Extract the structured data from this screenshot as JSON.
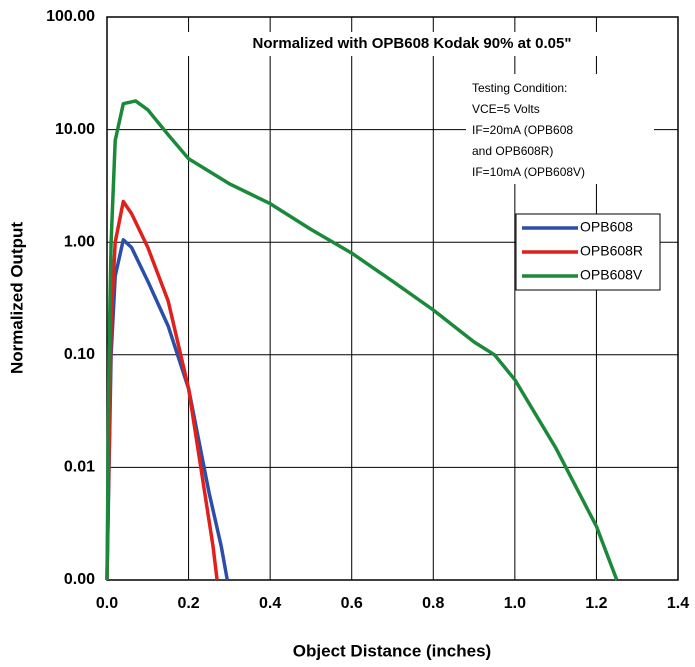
{
  "chart_data": {
    "type": "line",
    "title": "Normalized with OPB608 Kodak 90% at 0.05\"",
    "x_label": "Object Distance (inches)",
    "y_label": "Normalized Output",
    "y_scale": "log",
    "grid": true,
    "legend_position": "right",
    "annotation": [
      "Testing Condition:",
      "VCE=5 Volts",
      "IF=20mA (OPB608",
      "and OPB608R)",
      "IF=10mA (OPB608V)"
    ],
    "xlim": [
      0,
      1.4
    ],
    "xticks": [
      {
        "value": 0,
        "label": "0.0"
      },
      0.2,
      0.4,
      0.6,
      0.8,
      {
        "value": 1,
        "label": "1.0"
      },
      1.2,
      1.4
    ],
    "ylim": [
      0.001,
      100
    ],
    "yticks": [
      {
        "value": 0.001,
        "label": "0.00"
      },
      {
        "value": 0.01,
        "label": "0.01"
      },
      {
        "value": 0.1,
        "label": "0.10"
      },
      {
        "value": 1,
        "label": "1.00"
      },
      {
        "value": 10,
        "label": "10.00"
      },
      {
        "value": 100,
        "label": "100.00"
      }
    ],
    "series": [
      {
        "name": "OPB608",
        "color": "#2b4fa8",
        "x": [
          0.0,
          0.01,
          0.02,
          0.04,
          0.06,
          0.1,
          0.15,
          0.2,
          0.25,
          0.28,
          0.295
        ],
        "values": [
          0.001,
          0.1,
          0.5,
          1.05,
          0.9,
          0.45,
          0.18,
          0.05,
          0.006,
          0.002,
          0.001
        ]
      },
      {
        "name": "OPB608R",
        "color": "#e0201b",
        "x": [
          0.0,
          0.01,
          0.02,
          0.04,
          0.06,
          0.1,
          0.15,
          0.2,
          0.23,
          0.26,
          0.27
        ],
        "values": [
          0.001,
          0.2,
          1.0,
          2.3,
          1.8,
          0.9,
          0.3,
          0.05,
          0.01,
          0.002,
          0.001
        ]
      },
      {
        "name": "OPB608V",
        "color": "#1a8a3a",
        "x": [
          0.0,
          0.005,
          0.01,
          0.02,
          0.04,
          0.07,
          0.1,
          0.15,
          0.2,
          0.3,
          0.4,
          0.5,
          0.6,
          0.7,
          0.8,
          0.9,
          0.95,
          1.0,
          1.1,
          1.2,
          1.25
        ],
        "values": [
          0.001,
          0.1,
          1,
          8,
          17,
          18,
          15,
          9,
          5.5,
          3.3,
          2.2,
          1.3,
          0.8,
          0.45,
          0.25,
          0.13,
          0.1,
          0.06,
          0.015,
          0.003,
          0.001
        ]
      }
    ]
  }
}
